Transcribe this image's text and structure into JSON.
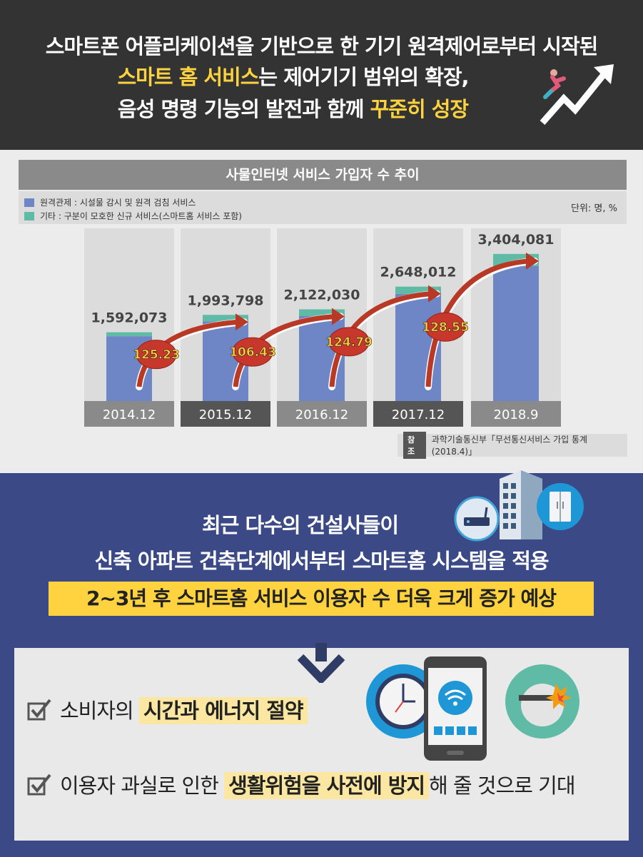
{
  "header": {
    "line1": "스마트폰 어플리케이션을 기반으로 한 기기 원격제어로부터 시작된",
    "line2_highlight": "스마트 홈 서비스",
    "line2_rest": "는 제어기기 범위의 확장,",
    "line3_start": "음성 명령 기능의 발전과 함께 ",
    "line3_highlight": "꾸준히 성장"
  },
  "chart_data": {
    "type": "bar",
    "title": "사물인터넷 서비스 가입자 수 추이",
    "unit": "단위: 명, %",
    "categories": [
      "2014.12",
      "2015.12",
      "2016.12",
      "2017.12",
      "2018.9"
    ],
    "totals": [
      1592073,
      1993798,
      2122030,
      2648012,
      3404081
    ],
    "total_labels": [
      "1,592,073",
      "1,993,798",
      "2,122,030",
      "2,648,012",
      "3,404,081"
    ],
    "series": [
      {
        "name": "원격관제 : 시설물 감시 및 원격 검침 서비스",
        "color": "#6f86c6",
        "values": [
          1500000,
          1840000,
          1965000,
          2480000,
          3125000
        ]
      },
      {
        "name": "기타 : 구분이 모호한 신규 서비스(스마트홈 서비스 포함)",
        "color": "#5fbaa6",
        "values": [
          92073,
          153798,
          157030,
          168012,
          279081
        ]
      }
    ],
    "growth_rates": [
      "125.23",
      "106.43",
      "124.79",
      "128.55"
    ],
    "ylim": [
      0,
      3600000
    ]
  },
  "source": {
    "tag": "참조",
    "text": "과학기술통신부「무선통신서비스 가입 통계(2018.4)」"
  },
  "bottom": {
    "line1": "최근 다수의 건설사들이",
    "line2": "신축 아파트 건축단계에서부터 스마트홈 시스템을 적용",
    "banner": "2~3년 후 스마트홈 서비스 이용자 수 더욱 크게 증가 예상",
    "check1_pre": "소비자의 ",
    "check1_mark": "시간과 에너지 절약",
    "check2_pre": "이용자 과실로 인한 ",
    "check2_mark": "생활위험을 사전에 방지",
    "check2_post": "해 줄 것으로 기대"
  },
  "colors": {
    "header_bg": "#333333",
    "highlight": "#ffd23f",
    "blue_bg": "#3b4a86",
    "bar_main": "#6f86c6",
    "bar_other": "#5fbaa6",
    "growth_badge": "#c8372b",
    "growth_text": "#ffd23f"
  }
}
